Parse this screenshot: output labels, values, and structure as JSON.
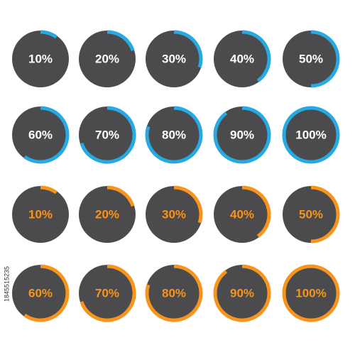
{
  "chart_data": [
    {
      "type": "radial-progress",
      "color": "#27a9e1",
      "label_color": "#ffffff",
      "ylim": [
        0,
        100
      ],
      "values": [
        10,
        20,
        30,
        40,
        50,
        60,
        70,
        80,
        90,
        100
      ],
      "value_labels": [
        "10%",
        "20%",
        "30%",
        "40%",
        "50%",
        "60%",
        "70%",
        "80%",
        "90%",
        "100%"
      ]
    },
    {
      "type": "radial-progress",
      "color": "#f7941d",
      "label_color": "#f7941d",
      "ylim": [
        0,
        100
      ],
      "values": [
        10,
        20,
        30,
        40,
        50,
        60,
        70,
        80,
        90,
        100
      ],
      "value_labels": [
        "10%",
        "20%",
        "30%",
        "40%",
        "50%",
        "60%",
        "70%",
        "80%",
        "90%",
        "100%"
      ]
    }
  ],
  "side_text": "1845515235"
}
